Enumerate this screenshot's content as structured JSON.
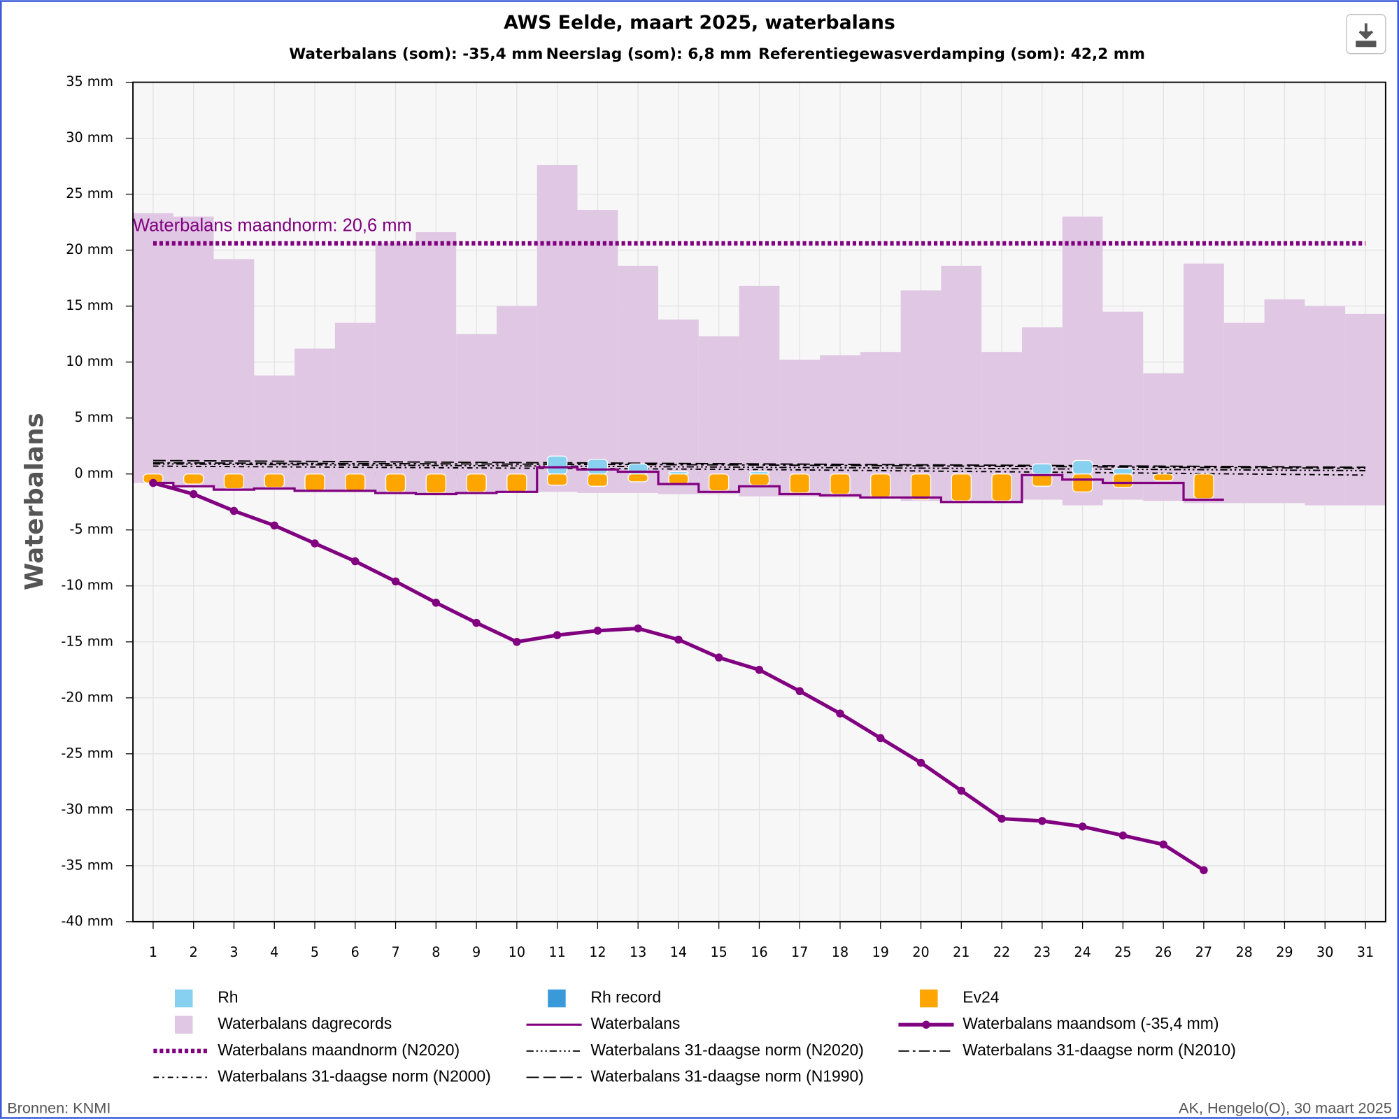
{
  "chart_data": {
    "type": "combo",
    "title": "AWS Eelde, maart 2025, waterbalans",
    "subtitle": [
      {
        "text": "Waterbalans (som): -35,4 mm",
        "color": "#800080"
      },
      {
        "text": "Neerslag (som): 6,8 mm",
        "color": "#0000ff"
      },
      {
        "text": "Referentiegewasverdamping (som): 42,2 mm",
        "color": "#ff0000"
      }
    ],
    "y_label": "Waterbalans",
    "x": [
      1,
      2,
      3,
      4,
      5,
      6,
      7,
      8,
      9,
      10,
      11,
      12,
      13,
      14,
      15,
      16,
      17,
      18,
      19,
      20,
      21,
      22,
      23,
      24,
      25,
      26,
      27,
      28,
      29,
      30,
      31
    ],
    "xlim": [
      0.5,
      31.5
    ],
    "ylim": [
      -40,
      35
    ],
    "yticks": [
      {
        "value": 35,
        "label": "35 mm"
      },
      {
        "value": 30,
        "label": "30 mm"
      },
      {
        "value": 25,
        "label": "25 mm"
      },
      {
        "value": 20,
        "label": "20 mm"
      },
      {
        "value": 15,
        "label": "15 mm"
      },
      {
        "value": 10,
        "label": "10 mm"
      },
      {
        "value": 5,
        "label": "5 mm"
      },
      {
        "value": 0,
        "label": "0 mm"
      },
      {
        "value": -5,
        "label": "-5 mm"
      },
      {
        "value": -10,
        "label": "-10 mm"
      },
      {
        "value": -15,
        "label": "-15 mm"
      },
      {
        "value": -20,
        "label": "-20 mm"
      },
      {
        "value": -25,
        "label": "-25 mm"
      },
      {
        "value": -30,
        "label": "-30 mm"
      },
      {
        "value": -35,
        "label": "-35 mm"
      },
      {
        "value": -40,
        "label": "-40 mm"
      }
    ],
    "grid": true,
    "series": [
      {
        "name": "Rh",
        "kind": "bar",
        "color": "#87d0ef",
        "values": [
          0,
          0,
          0,
          0,
          0,
          0,
          0,
          0,
          0,
          0,
          1.6,
          1.3,
          0.9,
          0.2,
          0,
          0.2,
          0,
          0,
          0,
          0,
          0,
          0,
          0.9,
          1.2,
          0.5,
          0,
          0,
          null,
          null,
          null,
          null
        ]
      },
      {
        "name": "Rh record",
        "kind": "bar",
        "color": "#3a9ad9",
        "values": [
          null,
          null,
          null,
          null,
          null,
          null,
          null,
          null,
          null,
          null,
          null,
          null,
          null,
          null,
          null,
          null,
          null,
          null,
          null,
          null,
          null,
          null,
          null,
          null,
          null,
          null,
          null,
          null,
          null,
          null,
          null
        ]
      },
      {
        "name": "Ev24",
        "kind": "bar",
        "color": "#ffa500",
        "values": [
          -0.8,
          -0.9,
          -1.3,
          -1.2,
          -1.5,
          -1.5,
          -1.6,
          -1.7,
          -1.6,
          -1.6,
          -1.0,
          -1.1,
          -0.7,
          -0.9,
          -1.5,
          -1.0,
          -1.7,
          -1.8,
          -2.1,
          -2.3,
          -2.4,
          -2.4,
          -1.1,
          -1.6,
          -1.2,
          -0.6,
          -2.2,
          null,
          null,
          null,
          null
        ]
      },
      {
        "name": "Waterbalans dagrecords",
        "kind": "range",
        "color": "#e0c7e3",
        "values": [
          23.3,
          23.0,
          19.2,
          8.8,
          11.2,
          13.5,
          20.6,
          21.6,
          12.5,
          15.0,
          27.6,
          23.6,
          18.6,
          13.8,
          12.3,
          16.8,
          10.2,
          10.6,
          10.9,
          16.4,
          18.6,
          10.9,
          13.1,
          23.0,
          14.5,
          9.0,
          18.8,
          13.5,
          15.6,
          15.0,
          14.3
        ],
        "low": [
          -0.8,
          -1.2,
          -1.3,
          -1.3,
          -1.5,
          -1.6,
          -1.7,
          -1.8,
          -1.7,
          -1.7,
          -1.6,
          -1.7,
          -1.7,
          -1.8,
          -1.8,
          -2.0,
          -2.0,
          -2.1,
          -2.2,
          -2.4,
          -2.4,
          -2.4,
          -2.3,
          -2.8,
          -2.3,
          -2.4,
          -2.6,
          -2.6,
          -2.6,
          -2.8,
          -2.8
        ]
      },
      {
        "name": "Waterbalans",
        "kind": "step",
        "color": "#800080",
        "values": [
          -0.8,
          -1.1,
          -1.4,
          -1.3,
          -1.5,
          -1.5,
          -1.7,
          -1.8,
          -1.7,
          -1.6,
          0.6,
          0.4,
          0.2,
          -0.9,
          -1.6,
          -1.1,
          -1.8,
          -1.9,
          -2.1,
          -2.1,
          -2.5,
          -2.5,
          -0.1,
          -0.5,
          -0.8,
          -0.8,
          -2.3,
          null,
          null,
          null,
          null
        ]
      },
      {
        "name": "Waterbalans maandsom (-35,4 mm)",
        "kind": "line",
        "color": "#800080",
        "values": [
          -0.8,
          -1.8,
          -3.3,
          -4.6,
          -6.2,
          -7.8,
          -9.6,
          -11.5,
          -13.3,
          -15.0,
          -14.4,
          -14.0,
          -13.8,
          -14.8,
          -16.4,
          -17.5,
          -19.4,
          -21.4,
          -23.6,
          -25.8,
          -28.3,
          -30.8,
          -31.0,
          -31.5,
          -32.3,
          -33.1,
          -35.4,
          null,
          null,
          null,
          null
        ]
      },
      {
        "name": "Waterbalans maandnorm (N2020)",
        "kind": "hline",
        "color": "#800080",
        "value": 20.6,
        "label": "Waterbalans maandnorm: 20,6 mm"
      },
      {
        "name": "Waterbalans 31-daagse norm (N2020)",
        "kind": "norm",
        "color": "#000000",
        "dash": "8 3 2 3 2 3 2 3",
        "x": [
          1,
          16,
          31
        ],
        "values": [
          0.9,
          0.6,
          0.3
        ]
      },
      {
        "name": "Waterbalans 31-daagse norm (N2010)",
        "kind": "norm",
        "color": "#000000",
        "dash": "12 4 3 4",
        "x": [
          1,
          16,
          31
        ],
        "values": [
          1.0,
          0.8,
          0.5
        ]
      },
      {
        "name": "Waterbalans 31-daagse norm (N2000)",
        "kind": "norm",
        "color": "#000000",
        "dash": "6 4 2 4",
        "x": [
          1,
          16,
          31
        ],
        "values": [
          0.7,
          0.4,
          -0.1
        ]
      },
      {
        "name": "Waterbalans 31-daagse norm (N1990)",
        "kind": "norm",
        "color": "#000000",
        "dash": "14 5",
        "x": [
          1,
          16,
          31
        ],
        "values": [
          1.2,
          0.9,
          0.6
        ]
      }
    ]
  },
  "footer": {
    "left": "Bronnen: KNMI",
    "right": "AK, Hengelo(O), 30 maart 2025"
  }
}
